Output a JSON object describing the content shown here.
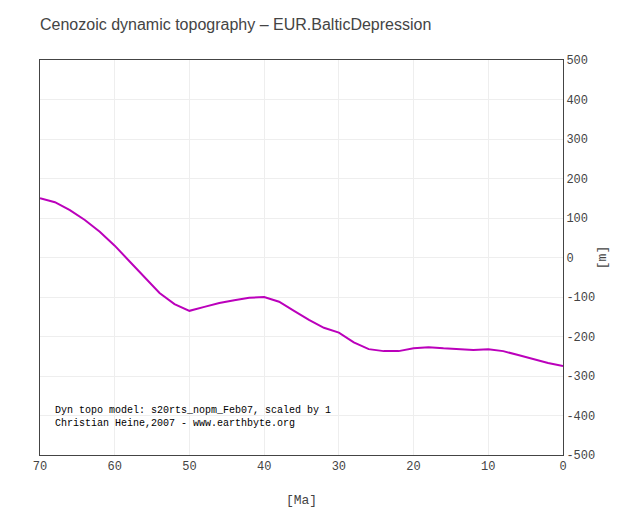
{
  "chart_data": {
    "type": "line",
    "title": "Cenozoic dynamic topography – EUR.BalticDepression",
    "xlabel": "[Ma]",
    "ylabel": "[m]",
    "annotations": [
      "Dyn topo model: s20rts_nopm_Feb07, scaled by 1",
      "Christian Heine,2007 - www.earthbyte.org"
    ],
    "x": [
      70,
      68,
      66,
      64,
      62,
      60,
      58,
      56,
      54,
      52,
      50,
      48,
      46,
      44,
      42,
      40,
      38,
      36,
      34,
      32,
      30,
      28,
      26,
      24,
      22,
      20,
      18,
      16,
      14,
      12,
      10,
      8,
      6,
      4,
      2,
      0
    ],
    "values": [
      150,
      140,
      120,
      95,
      65,
      30,
      -10,
      -50,
      -90,
      -118,
      -135,
      -125,
      -115,
      -108,
      -102,
      -100,
      -112,
      -135,
      -158,
      -178,
      -190,
      -215,
      -232,
      -237,
      -237,
      -230,
      -227,
      -230,
      -232,
      -234,
      -232,
      -237,
      -247,
      -257,
      -267,
      -275
    ],
    "color": "#bb00bb",
    "xlim": [
      70,
      0
    ],
    "ylim": [
      -500,
      500
    ],
    "xticks": [
      70,
      60,
      50,
      40,
      30,
      20,
      10,
      0
    ],
    "yticks": [
      -500,
      -400,
      -300,
      -200,
      -100,
      0,
      100,
      200,
      300,
      400,
      500
    ],
    "grid": true
  }
}
